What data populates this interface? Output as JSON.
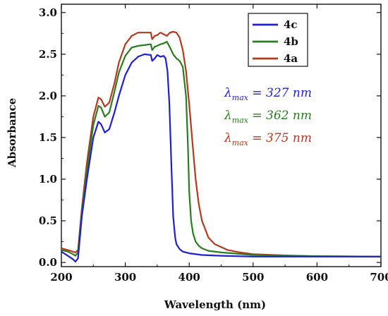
{
  "chart_data": {
    "type": "line",
    "title": "",
    "xlabel": "Wavelength (nm)",
    "ylabel": "Absorbance",
    "xlim": [
      200,
      700
    ],
    "ylim": [
      -0.05,
      3.1
    ],
    "xticks": [
      200,
      300,
      400,
      500,
      600,
      700
    ],
    "yticks": [
      0.0,
      0.5,
      1.0,
      1.5,
      2.0,
      2.5,
      3.0
    ],
    "xtick_labels": [
      "200",
      "300",
      "400",
      "500",
      "600",
      "700"
    ],
    "ytick_labels": [
      "0.0",
      "0.5",
      "1.0",
      "1.5",
      "2.0",
      "2.5",
      "3.0"
    ],
    "grid": false,
    "legend_position": "top-right",
    "series": [
      {
        "name": "4c",
        "color": "#1f1fd6",
        "x": [
          200,
          210,
          218,
          222,
          226,
          232,
          240,
          250,
          258,
          262,
          268,
          275,
          283,
          290,
          300,
          310,
          320,
          330,
          340,
          342,
          346,
          350,
          355,
          360,
          363,
          366,
          369,
          372,
          375,
          378,
          380,
          385,
          390,
          400,
          420,
          450,
          500,
          600,
          700
        ],
        "y": [
          0.13,
          0.08,
          0.04,
          0.01,
          0.05,
          0.55,
          1.0,
          1.5,
          1.69,
          1.66,
          1.56,
          1.6,
          1.8,
          2.0,
          2.25,
          2.4,
          2.47,
          2.5,
          2.49,
          2.42,
          2.45,
          2.49,
          2.47,
          2.48,
          2.45,
          2.3,
          1.9,
          1.2,
          0.55,
          0.3,
          0.22,
          0.16,
          0.13,
          0.11,
          0.09,
          0.08,
          0.07,
          0.07,
          0.07
        ]
      },
      {
        "name": "4b",
        "color": "#2a7d1f",
        "x": [
          200,
          210,
          218,
          222,
          226,
          232,
          240,
          250,
          258,
          262,
          268,
          275,
          283,
          290,
          300,
          310,
          320,
          330,
          340,
          342,
          346,
          350,
          355,
          360,
          365,
          370,
          375,
          380,
          385,
          390,
          395,
          398,
          400,
          403,
          406,
          410,
          415,
          420,
          430,
          450,
          500,
          600,
          700
        ],
        "y": [
          0.15,
          0.13,
          0.1,
          0.08,
          0.12,
          0.6,
          1.1,
          1.65,
          1.88,
          1.86,
          1.75,
          1.8,
          2.05,
          2.28,
          2.48,
          2.58,
          2.6,
          2.61,
          2.62,
          2.55,
          2.59,
          2.6,
          2.62,
          2.63,
          2.65,
          2.58,
          2.5,
          2.45,
          2.42,
          2.35,
          2.0,
          1.4,
          0.85,
          0.5,
          0.35,
          0.25,
          0.2,
          0.17,
          0.14,
          0.12,
          0.09,
          0.075,
          0.07
        ]
      },
      {
        "name": "4a",
        "color": "#b33a1e",
        "x": [
          200,
          210,
          218,
          222,
          226,
          232,
          240,
          250,
          258,
          262,
          268,
          275,
          283,
          290,
          300,
          310,
          320,
          330,
          340,
          342,
          346,
          350,
          355,
          360,
          365,
          370,
          375,
          380,
          385,
          390,
          395,
          400,
          405,
          410,
          415,
          420,
          430,
          440,
          460,
          480,
          500,
          550,
          600,
          700
        ],
        "y": [
          0.17,
          0.15,
          0.13,
          0.12,
          0.15,
          0.65,
          1.2,
          1.75,
          1.98,
          1.96,
          1.87,
          1.92,
          2.15,
          2.4,
          2.62,
          2.72,
          2.76,
          2.76,
          2.76,
          2.68,
          2.72,
          2.73,
          2.76,
          2.74,
          2.72,
          2.76,
          2.77,
          2.76,
          2.7,
          2.55,
          2.3,
          1.9,
          1.45,
          1.0,
          0.7,
          0.5,
          0.3,
          0.22,
          0.15,
          0.12,
          0.1,
          0.085,
          0.075,
          0.07
        ]
      }
    ],
    "legend_order": [
      "4c",
      "4b",
      "4a"
    ],
    "annotations": [
      {
        "prefix": "λ",
        "sub": "max",
        "text": " = 327  nm",
        "color": "#1f1fd6",
        "series": "4c"
      },
      {
        "prefix": "λ",
        "sub": "max",
        "text": " = 362  nm",
        "color": "#2a7d1f",
        "series": "4b"
      },
      {
        "prefix": "λ",
        "sub": "max",
        "text": " = 375  nm",
        "color": "#b33a1e",
        "series": "4a"
      }
    ]
  }
}
